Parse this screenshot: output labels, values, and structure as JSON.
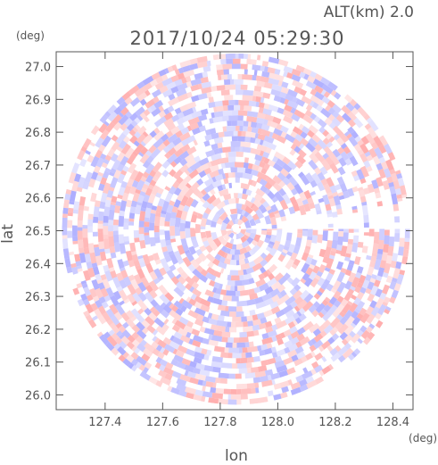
{
  "header": {
    "altitude_label": "ALT(km) 2.0",
    "timestamp": "2017/10/24 05:29:30"
  },
  "chart_data": {
    "type": "heatmap",
    "title": "2017/10/24 05:29:30",
    "annotation": "ALT(km) 2.0",
    "xlabel": "lon",
    "ylabel": "lat",
    "x_unit": "(deg)",
    "y_unit": "(deg)",
    "xlim": [
      127.23,
      128.47
    ],
    "ylim": [
      25.955,
      27.045
    ],
    "x_ticks": [
      127.4,
      127.6,
      127.8,
      128.0,
      128.2,
      128.4
    ],
    "x_tick_labels": [
      "127.4",
      "127.6",
      "127.8",
      "128.0",
      "128.2",
      "128.4"
    ],
    "y_ticks": [
      26.0,
      26.1,
      26.2,
      26.3,
      26.4,
      26.5,
      26.6,
      26.7,
      26.8,
      26.9,
      27.0
    ],
    "y_tick_labels": [
      "26.0",
      "26.1",
      "26.2",
      "26.3",
      "26.4",
      "26.5",
      "26.6",
      "26.7",
      "26.8",
      "26.9",
      "27.0"
    ],
    "scan_center": {
      "lon": 127.855,
      "lat": 26.505
    },
    "scan_radius_lon_deg": 0.605,
    "scan_radius_lat_deg": 0.535,
    "grid": false,
    "colors": {
      "positive": "#ff9a9a",
      "negative": "#9a9aff",
      "axis": "#555555"
    }
  }
}
